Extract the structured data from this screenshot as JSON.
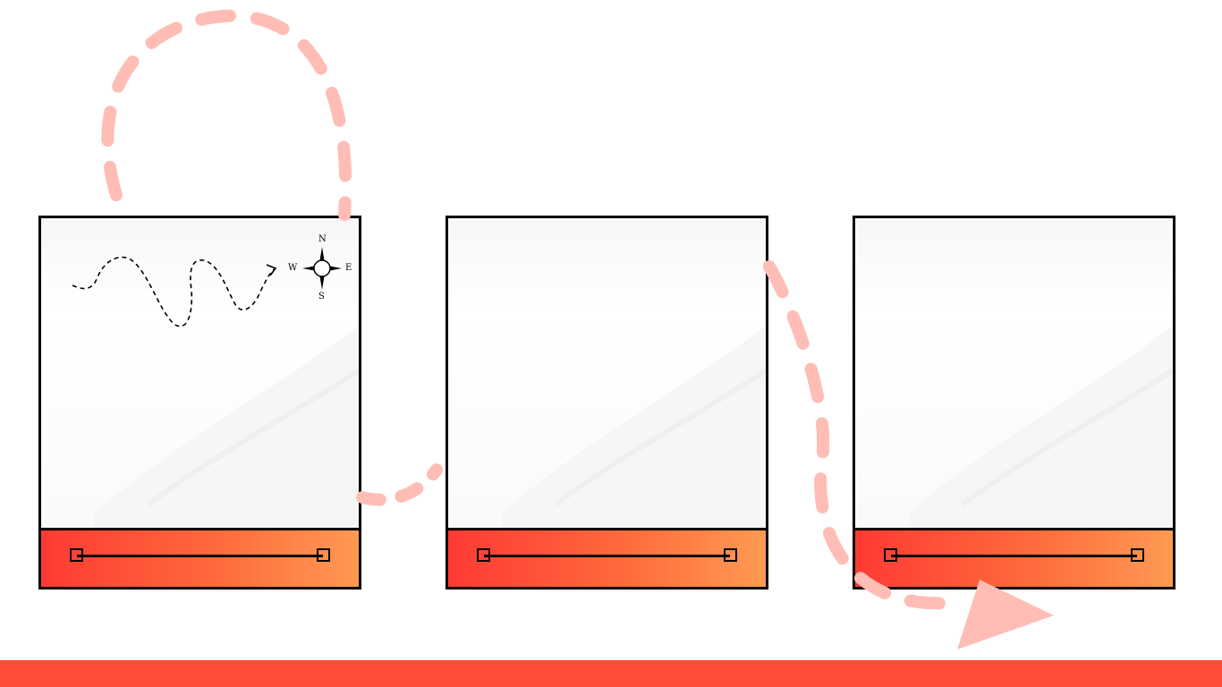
{
  "colors": {
    "accent": "#ff4d38",
    "dash_path": "#ffbdb5",
    "footer_gradient_start": "#ff3a33",
    "footer_gradient_end": "#ff9a52",
    "border": "#000000"
  },
  "compass": {
    "north": "N",
    "south": "S",
    "east": "E",
    "west": "W"
  },
  "cards": [
    {
      "icon": "compass-rose-icon",
      "path_icon": "dashed-route-arrow-icon"
    },
    {
      "icon": null
    },
    {
      "icon": null
    }
  ]
}
